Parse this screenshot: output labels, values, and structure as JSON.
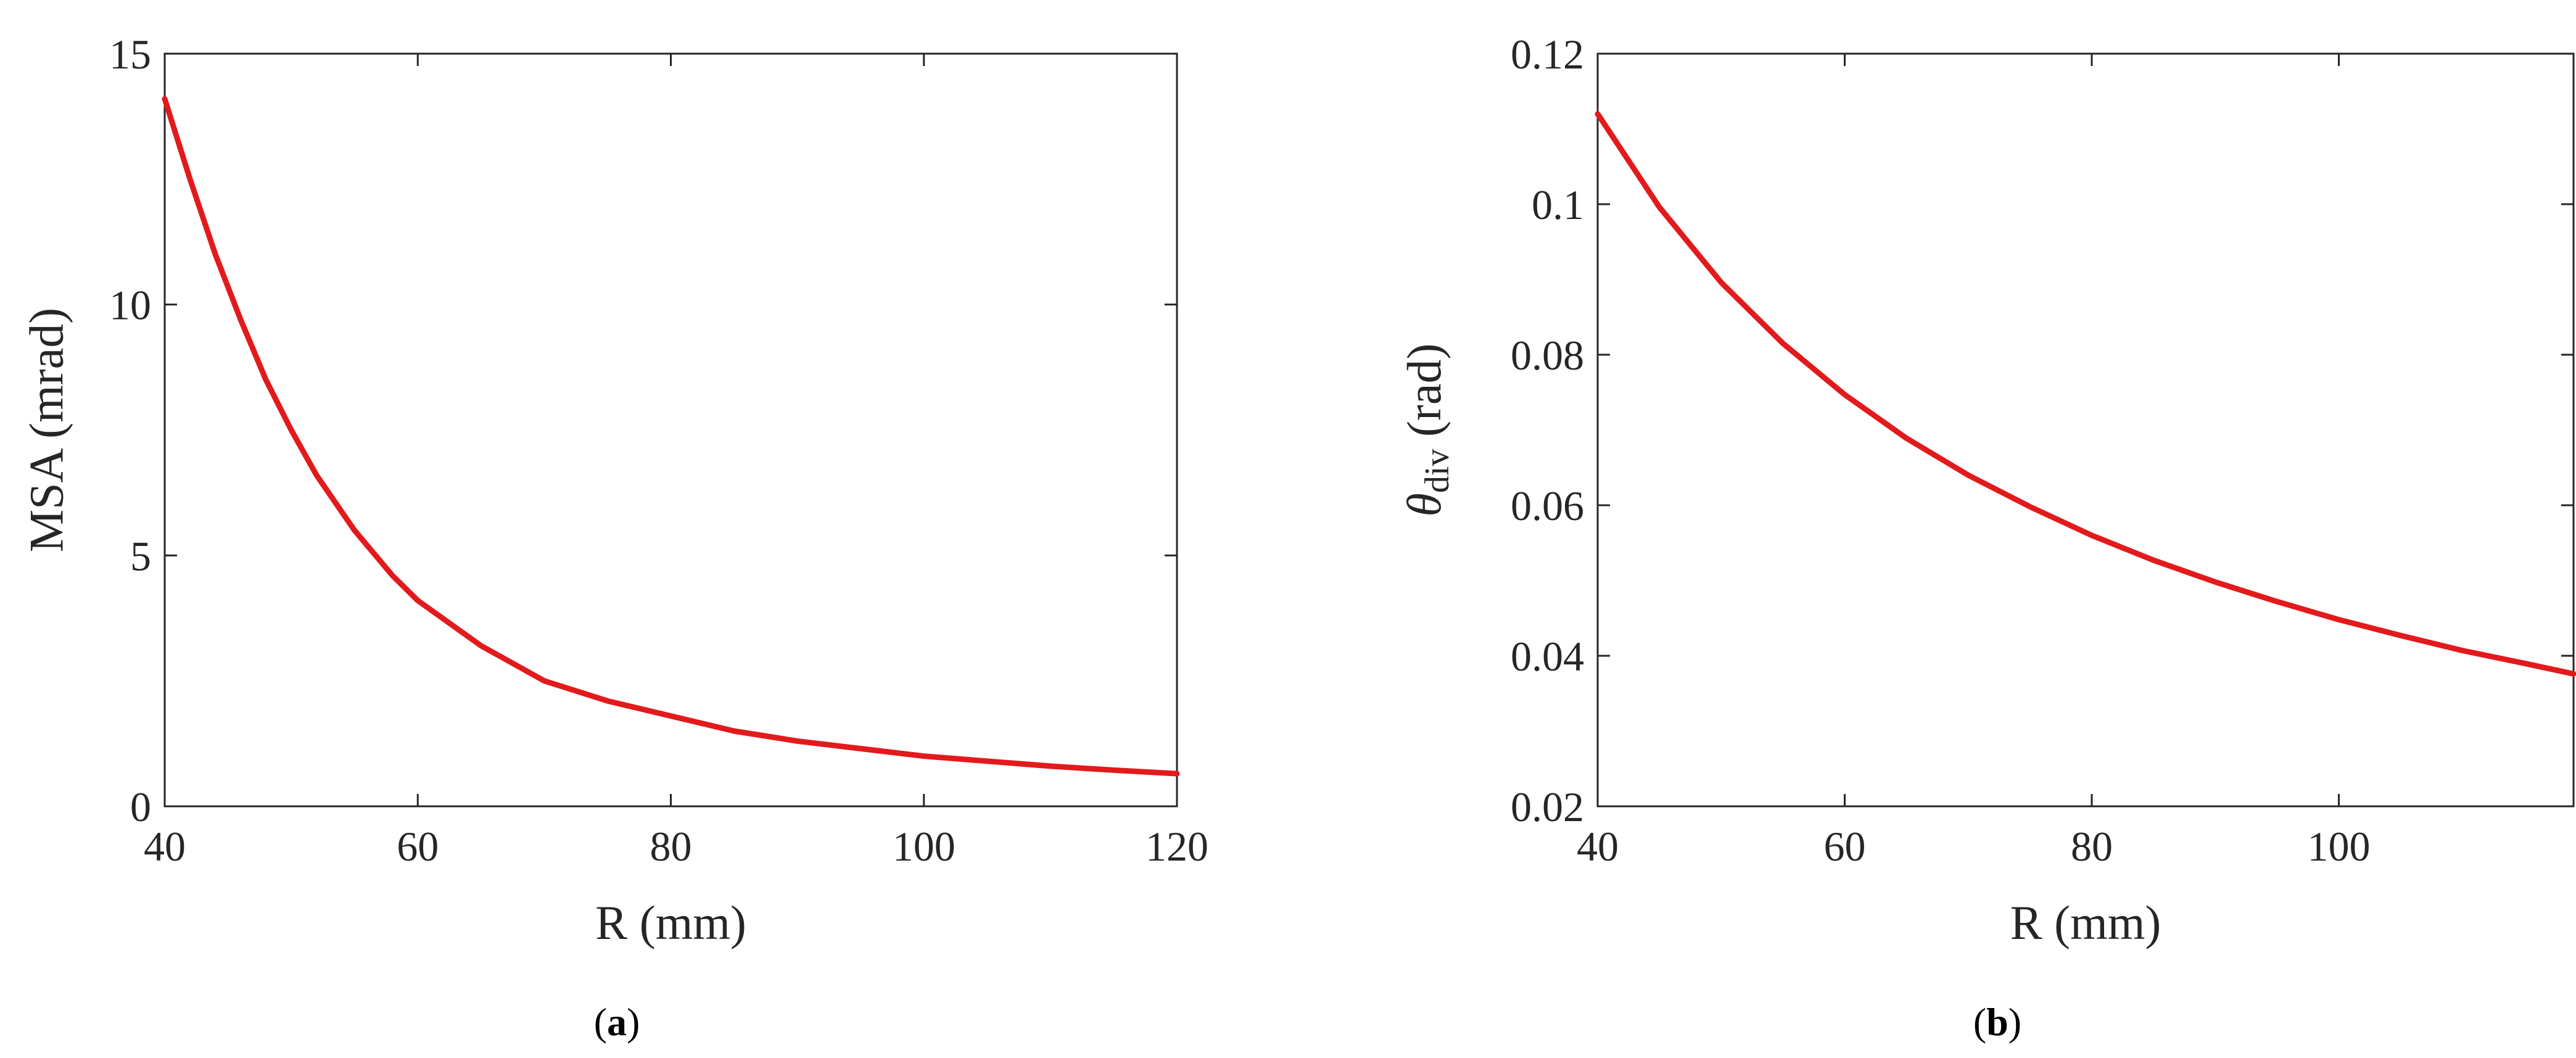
{
  "chart_data": [
    {
      "type": "line",
      "panel_label": {
        "open": "(",
        "letter": "a",
        "close": ")"
      },
      "xlabel": "R (mm)",
      "ylabel": "MSA (mrad)",
      "xlim": [
        40,
        120
      ],
      "ylim": [
        0,
        15
      ],
      "xticks": [
        40,
        60,
        80,
        100,
        120
      ],
      "yticks": [
        0,
        5,
        10,
        15
      ],
      "grid": false,
      "series": [
        {
          "color": "#e31a1c",
          "x": [
            40,
            42,
            44,
            46,
            48,
            50,
            52,
            55,
            58,
            60,
            65,
            70,
            75,
            80,
            85,
            90,
            95,
            100,
            105,
            110,
            115,
            120
          ],
          "y": [
            14.1,
            12.5,
            11.0,
            9.7,
            8.5,
            7.5,
            6.6,
            5.5,
            4.6,
            4.1,
            3.2,
            2.5,
            2.1,
            1.8,
            1.5,
            1.3,
            1.15,
            1.0,
            0.9,
            0.8,
            0.72,
            0.65
          ]
        }
      ]
    },
    {
      "type": "line",
      "panel_label": {
        "open": "(",
        "letter": "b",
        "close": ")"
      },
      "xlabel": "R (mm)",
      "ylabel_symbol": "θ",
      "ylabel_subscript": "div",
      "ylabel_unit": "(rad)",
      "xlim": [
        40,
        119
      ],
      "ylim": [
        0.02,
        0.12
      ],
      "xticks": [
        40,
        60,
        80,
        100
      ],
      "yticks": [
        0.02,
        0.04,
        0.06,
        0.08,
        0.1,
        0.12
      ],
      "grid": false,
      "series": [
        {
          "color": "#e31a1c",
          "x": [
            40,
            45,
            50,
            55,
            60,
            65,
            70,
            75,
            80,
            85,
            90,
            95,
            100,
            105,
            110,
            115,
            119
          ],
          "y": [
            0.112,
            0.0996,
            0.0896,
            0.0815,
            0.0747,
            0.0689,
            0.064,
            0.0598,
            0.056,
            0.0527,
            0.0498,
            0.0472,
            0.0448,
            0.0427,
            0.0407,
            0.039,
            0.0376
          ]
        }
      ]
    }
  ]
}
